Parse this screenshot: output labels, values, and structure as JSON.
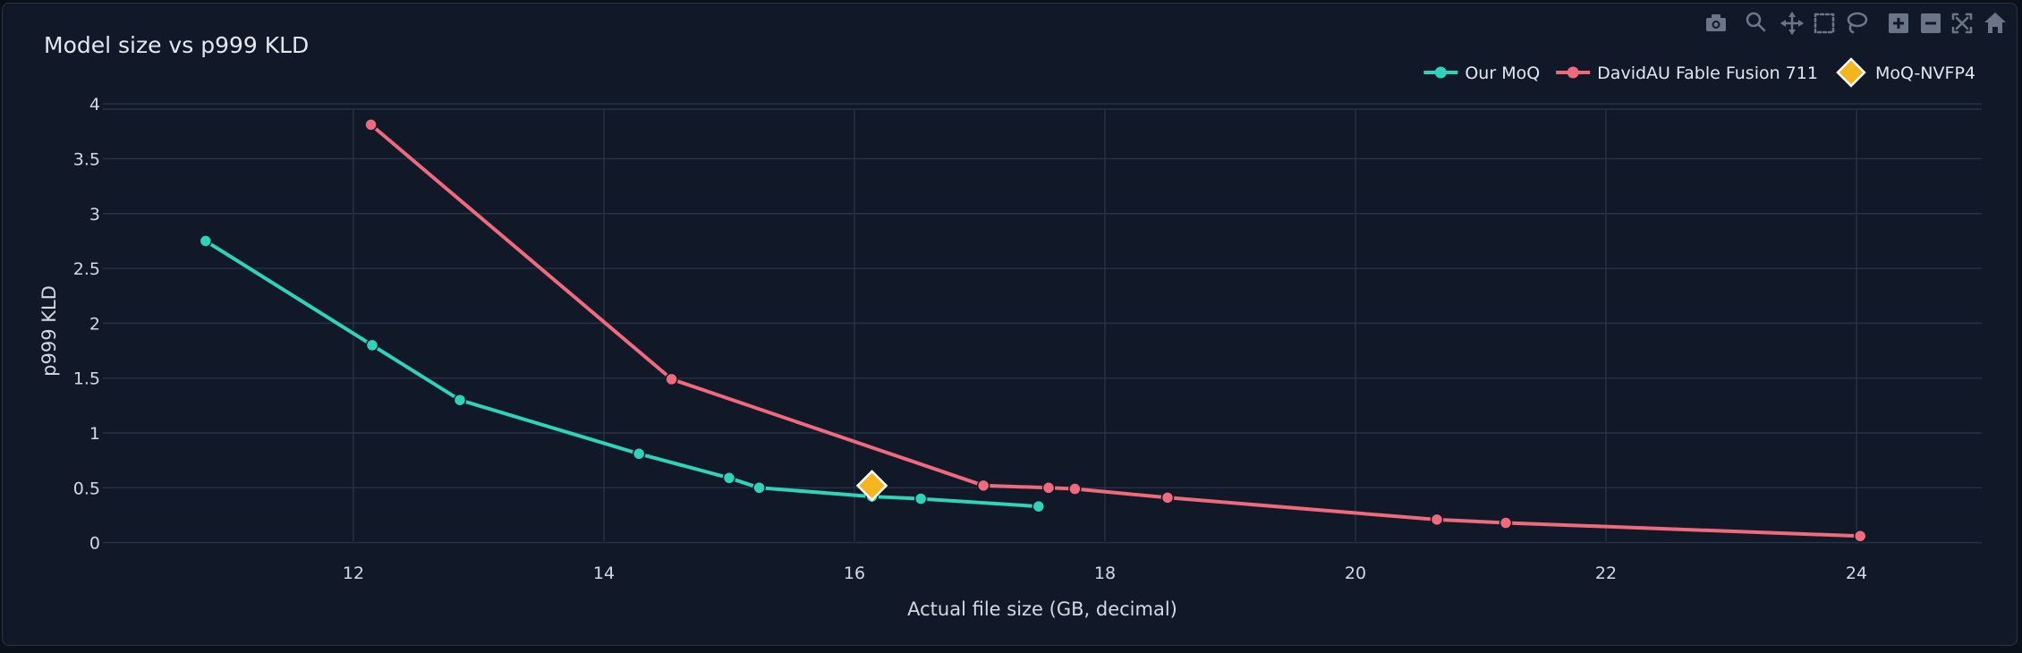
{
  "chart_data": {
    "type": "line",
    "title": "Model size vs p999 KLD",
    "xlabel": "Actual file size (GB, decimal)",
    "ylabel": "p999 KLD",
    "xlim": [
      10,
      25
    ],
    "ylim": [
      -0.15,
      4.05
    ],
    "x_ticks": [
      "12",
      "14",
      "16",
      "18",
      "20",
      "22",
      "24"
    ],
    "y_ticks": [
      "0",
      "0.5",
      "1",
      "1.5",
      "2",
      "2.5",
      "3",
      "3.5",
      "4"
    ],
    "grid": true,
    "legend_position": "top-right",
    "series": [
      {
        "name": "Our MoQ",
        "color": "#2ed3b9",
        "marker": "circle",
        "mode": "lines+markers",
        "points": [
          {
            "x": 10.82,
            "y": 2.75
          },
          {
            "x": 12.15,
            "y": 1.8
          },
          {
            "x": 12.85,
            "y": 1.3
          },
          {
            "x": 14.28,
            "y": 0.81
          },
          {
            "x": 15.0,
            "y": 0.59
          },
          {
            "x": 15.24,
            "y": 0.5
          },
          {
            "x": 16.14,
            "y": 0.42
          },
          {
            "x": 16.53,
            "y": 0.4
          },
          {
            "x": 17.47,
            "y": 0.33
          }
        ]
      },
      {
        "name": "DavidAU Fable Fusion 711",
        "color": "#f06a7e",
        "marker": "circle",
        "mode": "lines+markers",
        "points": [
          {
            "x": 12.14,
            "y": 3.81
          },
          {
            "x": 14.54,
            "y": 1.49
          },
          {
            "x": 17.03,
            "y": 0.52
          },
          {
            "x": 17.55,
            "y": 0.5
          },
          {
            "x": 17.76,
            "y": 0.49
          },
          {
            "x": 18.5,
            "y": 0.41
          },
          {
            "x": 20.65,
            "y": 0.21
          },
          {
            "x": 21.2,
            "y": 0.18
          },
          {
            "x": 24.03,
            "y": 0.06
          }
        ]
      },
      {
        "name": "MoQ-NVFP4",
        "color": "#f5b51e",
        "marker": "diamond",
        "mode": "markers",
        "points": [
          {
            "x": 16.14,
            "y": 0.52
          }
        ]
      }
    ]
  },
  "toolbar": {
    "icons": [
      "camera-icon",
      "zoom-icon",
      "pan-icon",
      "box-select-icon",
      "lasso-select-icon",
      "zoom-in-icon",
      "zoom-out-icon",
      "autoscale-icon",
      "reset-axes-icon"
    ]
  },
  "colors": {
    "background": "#111928",
    "grid": "#263244",
    "text": "#d4d9e1"
  }
}
